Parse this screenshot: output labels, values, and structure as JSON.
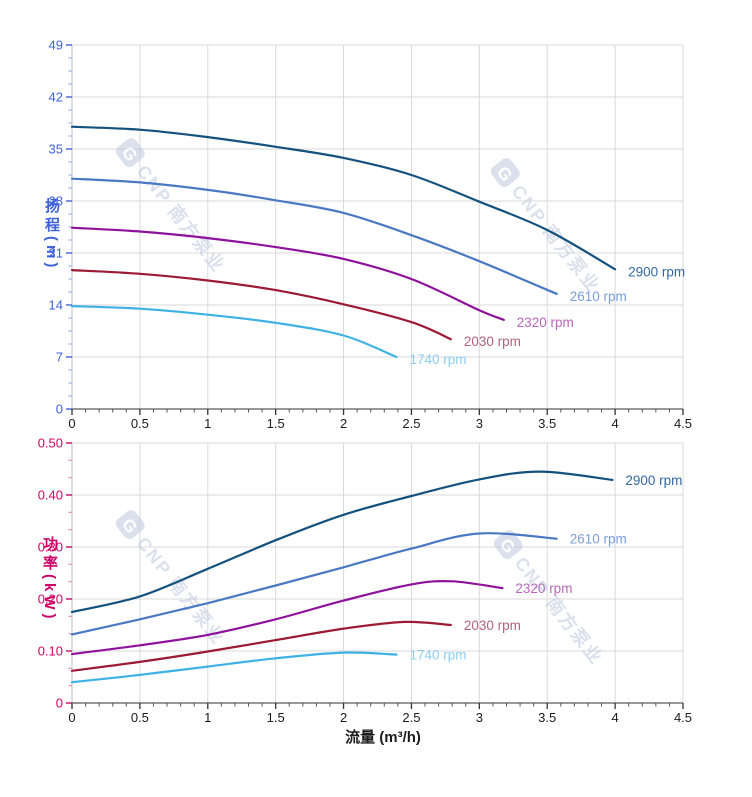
{
  "page": {
    "background": "#ffffff"
  },
  "axes": {
    "flow_label": "流量 (m³/h)",
    "head_label": "扬程(m)",
    "power_label": "功率(kW)",
    "head_axis_color": "#3f62d9",
    "head_minor_tick_color": "#9db0ef",
    "power_axis_color": "#cc0566",
    "power_minor_tick_color": "#e88ab6",
    "x_label_color": "#1c1c1c",
    "x_tick_color": "#333333",
    "grid_color": "#d9d9d9",
    "y_axis_line_color": "#b9bfce",
    "x_axis_line_color": "#5a5a5a"
  },
  "watermark": {
    "logo": "cnp-logo",
    "text": "CNP 南方泵业",
    "color": "#bcc9e0"
  },
  "chart_data": [
    {
      "id": "head",
      "type": "line",
      "title": "",
      "xlabel": "流量 (m³/h)",
      "ylabel": "扬程(m)",
      "xlim": [
        0,
        4.5
      ],
      "ylim": [
        0,
        49
      ],
      "x_tick_step": 0.5,
      "y_tick_step": 7,
      "x_tick_labels": [
        "0",
        "0.5",
        "1",
        "1.5",
        "2",
        "2.5",
        "3",
        "3.5",
        "4",
        "4.5"
      ],
      "y_tick_labels": [
        "0",
        "7",
        "14",
        "21",
        "28",
        "35",
        "42",
        "49"
      ],
      "grid": true,
      "legend_position": "curve-end-labels",
      "series": [
        {
          "name": "2900 rpm",
          "color": "#15517d",
          "label_color": "#33689f",
          "points": [
            [
              0,
              38.0
            ],
            [
              0.5,
              37.6
            ],
            [
              1,
              36.6
            ],
            [
              1.5,
              35.3
            ],
            [
              2,
              33.8
            ],
            [
              2.5,
              31.5
            ],
            [
              3,
              27.9
            ],
            [
              3.5,
              24.1
            ],
            [
              4,
              18.8
            ]
          ]
        },
        {
          "name": "2610 rpm",
          "color": "#4a78c2",
          "label_color": "#7c9ed8",
          "points": [
            [
              0,
              31.0
            ],
            [
              0.5,
              30.5
            ],
            [
              1,
              29.5
            ],
            [
              1.5,
              28.1
            ],
            [
              2,
              26.4
            ],
            [
              2.5,
              23.4
            ],
            [
              3,
              19.9
            ],
            [
              3.57,
              15.5
            ]
          ]
        },
        {
          "name": "2320 rpm",
          "color": "#8e129b",
          "label_color": "#b767bb",
          "points": [
            [
              0,
              24.4
            ],
            [
              0.5,
              23.9
            ],
            [
              1,
              23.0
            ],
            [
              1.5,
              21.8
            ],
            [
              2,
              20.2
            ],
            [
              2.5,
              17.5
            ],
            [
              3,
              13.3
            ],
            [
              3.18,
              12.0
            ]
          ]
        },
        {
          "name": "2030 rpm",
          "color": "#9c1a33",
          "label_color": "#b16378",
          "points": [
            [
              0,
              18.7
            ],
            [
              0.5,
              18.2
            ],
            [
              1,
              17.3
            ],
            [
              1.5,
              16.0
            ],
            [
              2,
              14.1
            ],
            [
              2.5,
              11.7
            ],
            [
              2.79,
              9.4
            ]
          ]
        },
        {
          "name": "1740 rpm",
          "color": "#3eb1e5",
          "label_color": "#8ecdee",
          "points": [
            [
              0,
              13.85
            ],
            [
              0.5,
              13.5
            ],
            [
              1,
              12.7
            ],
            [
              1.5,
              11.6
            ],
            [
              2,
              9.9
            ],
            [
              2.39,
              7.0
            ]
          ]
        }
      ]
    },
    {
      "id": "power",
      "type": "line",
      "title": "",
      "xlabel": "流量 (m³/h)",
      "ylabel": "功率(kW)",
      "xlim": [
        0,
        4.5
      ],
      "ylim": [
        0,
        0.5
      ],
      "x_tick_step": 0.5,
      "y_tick_step": 0.1,
      "x_tick_labels": [
        "0",
        "0.5",
        "1",
        "1.5",
        "2",
        "2.5",
        "3",
        "3.5",
        "4",
        "4.5"
      ],
      "y_tick_labels": [
        "0",
        "0.10",
        "0.20",
        "0.30",
        "0.40",
        "0.50"
      ],
      "grid": true,
      "legend_position": "curve-end-labels",
      "series": [
        {
          "name": "2900 rpm",
          "color": "#15517d",
          "label_color": "#33689f",
          "points": [
            [
              0,
              0.175
            ],
            [
              0.5,
              0.205
            ],
            [
              1,
              0.258
            ],
            [
              1.5,
              0.313
            ],
            [
              2,
              0.362
            ],
            [
              2.5,
              0.398
            ],
            [
              3,
              0.43
            ],
            [
              3.45,
              0.445
            ],
            [
              3.98,
              0.429
            ]
          ]
        },
        {
          "name": "2610 rpm",
          "color": "#4a78c2",
          "label_color": "#7c9ed8",
          "points": [
            [
              0,
              0.132
            ],
            [
              0.5,
              0.161
            ],
            [
              1,
              0.192
            ],
            [
              1.5,
              0.226
            ],
            [
              2,
              0.261
            ],
            [
              2.5,
              0.297
            ],
            [
              3.0,
              0.326
            ],
            [
              3.57,
              0.316
            ]
          ]
        },
        {
          "name": "2320 rpm",
          "color": "#8e129b",
          "label_color": "#b767bb",
          "points": [
            [
              0,
              0.094
            ],
            [
              0.5,
              0.111
            ],
            [
              1,
              0.131
            ],
            [
              1.5,
              0.161
            ],
            [
              2,
              0.197
            ],
            [
              2.5,
              0.228
            ],
            [
              2.8,
              0.234
            ],
            [
              3.17,
              0.221
            ]
          ]
        },
        {
          "name": "2030 rpm",
          "color": "#9c1a33",
          "label_color": "#b16378",
          "points": [
            [
              0,
              0.062
            ],
            [
              0.5,
              0.079
            ],
            [
              1,
              0.099
            ],
            [
              1.5,
              0.121
            ],
            [
              2,
              0.143
            ],
            [
              2.45,
              0.156
            ],
            [
              2.79,
              0.15
            ]
          ]
        },
        {
          "name": "1740 rpm",
          "color": "#3eb1e5",
          "label_color": "#8ecdee",
          "points": [
            [
              0,
              0.04
            ],
            [
              0.5,
              0.054
            ],
            [
              1,
              0.07
            ],
            [
              1.5,
              0.086
            ],
            [
              2,
              0.097
            ],
            [
              2.39,
              0.093
            ]
          ]
        }
      ]
    }
  ]
}
